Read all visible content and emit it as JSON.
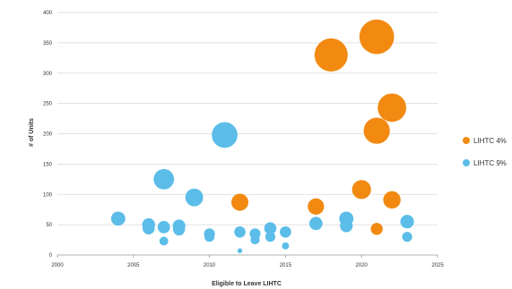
{
  "chart_data": {
    "type": "scatter",
    "title": "",
    "xlabel": "Eligible to Leave LIHTC",
    "ylabel": "# of Units",
    "xlim": [
      2000,
      2025
    ],
    "ylim": [
      0,
      400
    ],
    "xticks": [
      2000,
      2005,
      2010,
      2015,
      2020,
      2025
    ],
    "yticks": [
      0,
      50,
      100,
      150,
      200,
      250,
      300,
      350,
      400
    ],
    "grid": true,
    "legend_position": "right",
    "series": [
      {
        "name": "LIHTC 4%",
        "color": "#f28a12",
        "points": [
          {
            "x": 2012,
            "y": 87
          },
          {
            "x": 2017,
            "y": 80
          },
          {
            "x": 2018,
            "y": 330
          },
          {
            "x": 2020,
            "y": 108
          },
          {
            "x": 2021,
            "y": 360
          },
          {
            "x": 2021,
            "y": 205
          },
          {
            "x": 2021,
            "y": 43
          },
          {
            "x": 2022,
            "y": 243
          },
          {
            "x": 2022,
            "y": 91
          }
        ]
      },
      {
        "name": "LIHTC 9%",
        "color": "#5bbde8",
        "points": [
          {
            "x": 2004,
            "y": 60
          },
          {
            "x": 2006,
            "y": 50
          },
          {
            "x": 2006,
            "y": 44
          },
          {
            "x": 2007,
            "y": 125
          },
          {
            "x": 2007,
            "y": 46
          },
          {
            "x": 2007,
            "y": 23
          },
          {
            "x": 2008,
            "y": 48
          },
          {
            "x": 2008,
            "y": 42
          },
          {
            "x": 2009,
            "y": 95
          },
          {
            "x": 2010,
            "y": 35
          },
          {
            "x": 2010,
            "y": 30
          },
          {
            "x": 2011,
            "y": 198
          },
          {
            "x": 2012,
            "y": 38
          },
          {
            "x": 2012,
            "y": 7
          },
          {
            "x": 2013,
            "y": 35
          },
          {
            "x": 2013,
            "y": 25
          },
          {
            "x": 2014,
            "y": 44
          },
          {
            "x": 2014,
            "y": 30
          },
          {
            "x": 2015,
            "y": 38
          },
          {
            "x": 2015,
            "y": 15
          },
          {
            "x": 2017,
            "y": 52
          },
          {
            "x": 2019,
            "y": 60
          },
          {
            "x": 2019,
            "y": 48
          },
          {
            "x": 2023,
            "y": 55
          },
          {
            "x": 2023,
            "y": 30
          }
        ]
      }
    ]
  }
}
